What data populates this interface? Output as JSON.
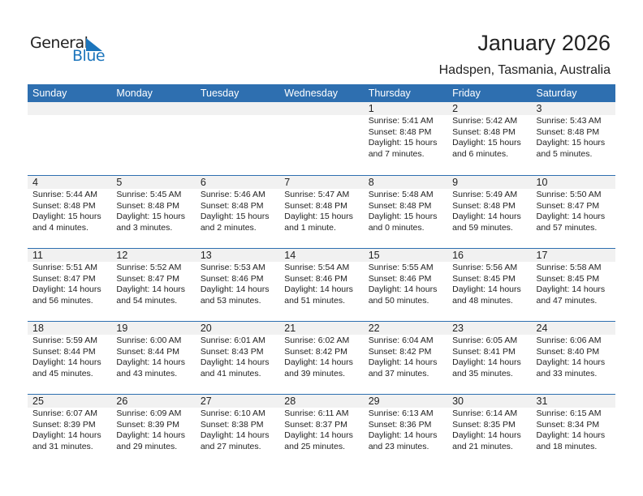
{
  "brand": {
    "line1": "General",
    "line2": "Blue",
    "accent": "#1c75bc"
  },
  "header": {
    "title": "January 2026",
    "location": "Hadspen, Tasmania, Australia"
  },
  "weekdays": [
    "Sunday",
    "Monday",
    "Tuesday",
    "Wednesday",
    "Thursday",
    "Friday",
    "Saturday"
  ],
  "colors": {
    "header_bg": "#2e6fb0",
    "band": "#f1f1f1"
  },
  "weeks": [
    [
      null,
      null,
      null,
      null,
      {
        "day": "1",
        "sunrise": "Sunrise: 5:41 AM",
        "sunset": "Sunset: 8:48 PM",
        "daylight1": "Daylight: 15 hours",
        "daylight2": "and 7 minutes."
      },
      {
        "day": "2",
        "sunrise": "Sunrise: 5:42 AM",
        "sunset": "Sunset: 8:48 PM",
        "daylight1": "Daylight: 15 hours",
        "daylight2": "and 6 minutes."
      },
      {
        "day": "3",
        "sunrise": "Sunrise: 5:43 AM",
        "sunset": "Sunset: 8:48 PM",
        "daylight1": "Daylight: 15 hours",
        "daylight2": "and 5 minutes."
      }
    ],
    [
      {
        "day": "4",
        "sunrise": "Sunrise: 5:44 AM",
        "sunset": "Sunset: 8:48 PM",
        "daylight1": "Daylight: 15 hours",
        "daylight2": "and 4 minutes."
      },
      {
        "day": "5",
        "sunrise": "Sunrise: 5:45 AM",
        "sunset": "Sunset: 8:48 PM",
        "daylight1": "Daylight: 15 hours",
        "daylight2": "and 3 minutes."
      },
      {
        "day": "6",
        "sunrise": "Sunrise: 5:46 AM",
        "sunset": "Sunset: 8:48 PM",
        "daylight1": "Daylight: 15 hours",
        "daylight2": "and 2 minutes."
      },
      {
        "day": "7",
        "sunrise": "Sunrise: 5:47 AM",
        "sunset": "Sunset: 8:48 PM",
        "daylight1": "Daylight: 15 hours",
        "daylight2": "and 1 minute."
      },
      {
        "day": "8",
        "sunrise": "Sunrise: 5:48 AM",
        "sunset": "Sunset: 8:48 PM",
        "daylight1": "Daylight: 15 hours",
        "daylight2": "and 0 minutes."
      },
      {
        "day": "9",
        "sunrise": "Sunrise: 5:49 AM",
        "sunset": "Sunset: 8:48 PM",
        "daylight1": "Daylight: 14 hours",
        "daylight2": "and 59 minutes."
      },
      {
        "day": "10",
        "sunrise": "Sunrise: 5:50 AM",
        "sunset": "Sunset: 8:47 PM",
        "daylight1": "Daylight: 14 hours",
        "daylight2": "and 57 minutes."
      }
    ],
    [
      {
        "day": "11",
        "sunrise": "Sunrise: 5:51 AM",
        "sunset": "Sunset: 8:47 PM",
        "daylight1": "Daylight: 14 hours",
        "daylight2": "and 56 minutes."
      },
      {
        "day": "12",
        "sunrise": "Sunrise: 5:52 AM",
        "sunset": "Sunset: 8:47 PM",
        "daylight1": "Daylight: 14 hours",
        "daylight2": "and 54 minutes."
      },
      {
        "day": "13",
        "sunrise": "Sunrise: 5:53 AM",
        "sunset": "Sunset: 8:46 PM",
        "daylight1": "Daylight: 14 hours",
        "daylight2": "and 53 minutes."
      },
      {
        "day": "14",
        "sunrise": "Sunrise: 5:54 AM",
        "sunset": "Sunset: 8:46 PM",
        "daylight1": "Daylight: 14 hours",
        "daylight2": "and 51 minutes."
      },
      {
        "day": "15",
        "sunrise": "Sunrise: 5:55 AM",
        "sunset": "Sunset: 8:46 PM",
        "daylight1": "Daylight: 14 hours",
        "daylight2": "and 50 minutes."
      },
      {
        "day": "16",
        "sunrise": "Sunrise: 5:56 AM",
        "sunset": "Sunset: 8:45 PM",
        "daylight1": "Daylight: 14 hours",
        "daylight2": "and 48 minutes."
      },
      {
        "day": "17",
        "sunrise": "Sunrise: 5:58 AM",
        "sunset": "Sunset: 8:45 PM",
        "daylight1": "Daylight: 14 hours",
        "daylight2": "and 47 minutes."
      }
    ],
    [
      {
        "day": "18",
        "sunrise": "Sunrise: 5:59 AM",
        "sunset": "Sunset: 8:44 PM",
        "daylight1": "Daylight: 14 hours",
        "daylight2": "and 45 minutes."
      },
      {
        "day": "19",
        "sunrise": "Sunrise: 6:00 AM",
        "sunset": "Sunset: 8:44 PM",
        "daylight1": "Daylight: 14 hours",
        "daylight2": "and 43 minutes."
      },
      {
        "day": "20",
        "sunrise": "Sunrise: 6:01 AM",
        "sunset": "Sunset: 8:43 PM",
        "daylight1": "Daylight: 14 hours",
        "daylight2": "and 41 minutes."
      },
      {
        "day": "21",
        "sunrise": "Sunrise: 6:02 AM",
        "sunset": "Sunset: 8:42 PM",
        "daylight1": "Daylight: 14 hours",
        "daylight2": "and 39 minutes."
      },
      {
        "day": "22",
        "sunrise": "Sunrise: 6:04 AM",
        "sunset": "Sunset: 8:42 PM",
        "daylight1": "Daylight: 14 hours",
        "daylight2": "and 37 minutes."
      },
      {
        "day": "23",
        "sunrise": "Sunrise: 6:05 AM",
        "sunset": "Sunset: 8:41 PM",
        "daylight1": "Daylight: 14 hours",
        "daylight2": "and 35 minutes."
      },
      {
        "day": "24",
        "sunrise": "Sunrise: 6:06 AM",
        "sunset": "Sunset: 8:40 PM",
        "daylight1": "Daylight: 14 hours",
        "daylight2": "and 33 minutes."
      }
    ],
    [
      {
        "day": "25",
        "sunrise": "Sunrise: 6:07 AM",
        "sunset": "Sunset: 8:39 PM",
        "daylight1": "Daylight: 14 hours",
        "daylight2": "and 31 minutes."
      },
      {
        "day": "26",
        "sunrise": "Sunrise: 6:09 AM",
        "sunset": "Sunset: 8:39 PM",
        "daylight1": "Daylight: 14 hours",
        "daylight2": "and 29 minutes."
      },
      {
        "day": "27",
        "sunrise": "Sunrise: 6:10 AM",
        "sunset": "Sunset: 8:38 PM",
        "daylight1": "Daylight: 14 hours",
        "daylight2": "and 27 minutes."
      },
      {
        "day": "28",
        "sunrise": "Sunrise: 6:11 AM",
        "sunset": "Sunset: 8:37 PM",
        "daylight1": "Daylight: 14 hours",
        "daylight2": "and 25 minutes."
      },
      {
        "day": "29",
        "sunrise": "Sunrise: 6:13 AM",
        "sunset": "Sunset: 8:36 PM",
        "daylight1": "Daylight: 14 hours",
        "daylight2": "and 23 minutes."
      },
      {
        "day": "30",
        "sunrise": "Sunrise: 6:14 AM",
        "sunset": "Sunset: 8:35 PM",
        "daylight1": "Daylight: 14 hours",
        "daylight2": "and 21 minutes."
      },
      {
        "day": "31",
        "sunrise": "Sunrise: 6:15 AM",
        "sunset": "Sunset: 8:34 PM",
        "daylight1": "Daylight: 14 hours",
        "daylight2": "and 18 minutes."
      }
    ]
  ]
}
